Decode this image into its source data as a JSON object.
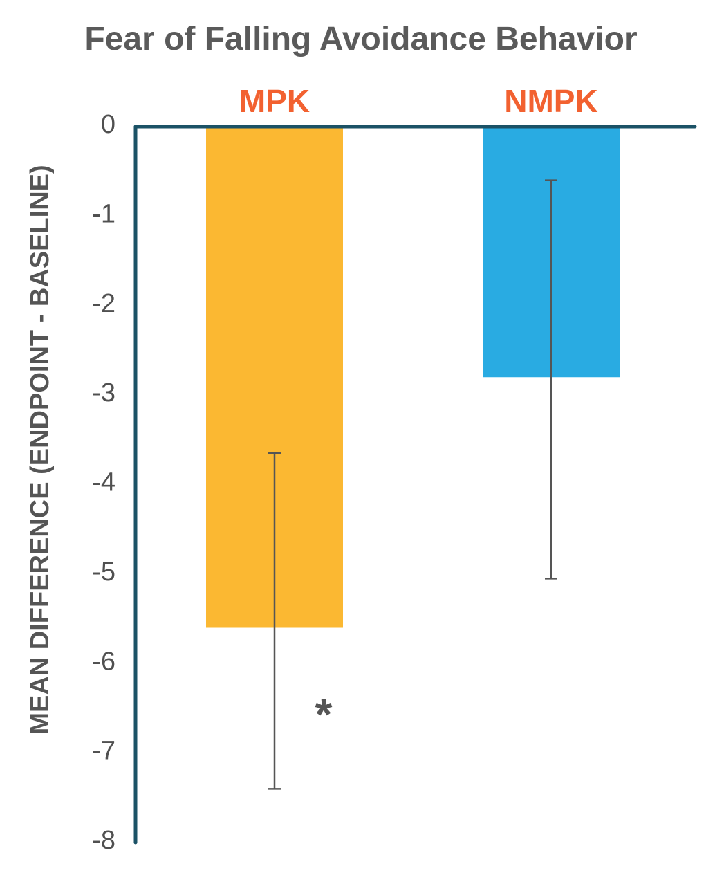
{
  "chart_data": {
    "type": "bar",
    "title": "Fear of Falling Avoidance Behavior",
    "xlabel": "",
    "ylabel": "MEAN DIFFERENCE (ENDPOINT - BASELINE)",
    "categories": [
      "MPK",
      "NMPK"
    ],
    "values": [
      -5.6,
      -2.8
    ],
    "error_bars": [
      {
        "low": -7.4,
        "high": -3.65
      },
      {
        "low": -5.05,
        "high": -0.6
      }
    ],
    "bar_colors": [
      "#FBB832",
      "#29ABE2"
    ],
    "category_label_color": "#F26130",
    "axis_color": "#1B5266",
    "error_bar_color": "#555555",
    "ylim": [
      -8,
      0
    ],
    "y_ticks": [
      0,
      -1,
      -2,
      -3,
      -4,
      -5,
      -6,
      -7,
      -8
    ],
    "y_tick_labels": [
      "0",
      "-1",
      "-2",
      "-3",
      "-4",
      "-5",
      "-6",
      "-7",
      "-8"
    ],
    "grid": false,
    "annotations": [
      {
        "text": "*",
        "category": "MPK",
        "value": -6.55
      }
    ]
  }
}
